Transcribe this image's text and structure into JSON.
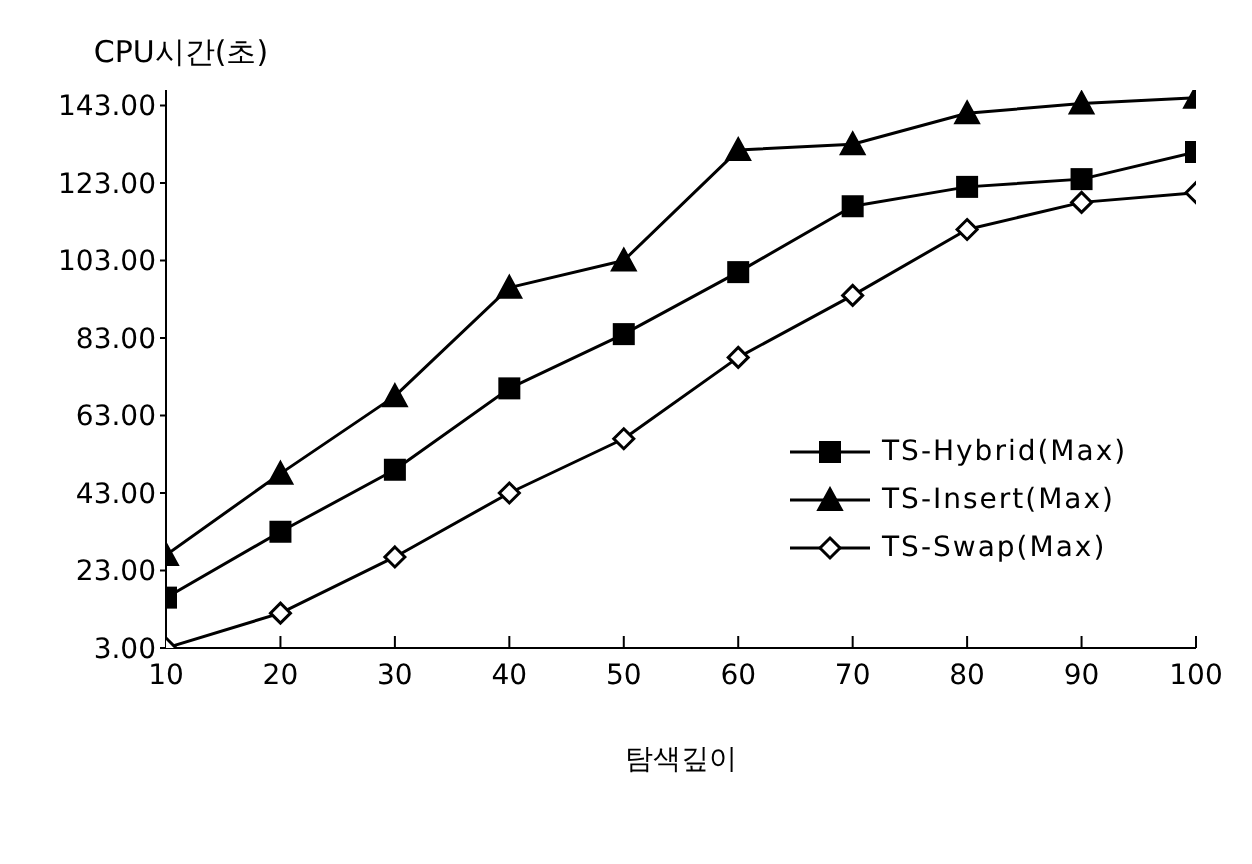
{
  "chart_data": {
    "type": "line",
    "ylabel": "CPU시간(초)",
    "xlabel": "탐색깊이",
    "x": [
      10,
      20,
      30,
      40,
      50,
      60,
      70,
      80,
      90,
      100
    ],
    "xlim": [
      10,
      100
    ],
    "xticks": [
      10,
      20,
      30,
      40,
      50,
      60,
      70,
      80,
      90,
      100
    ],
    "ylim": [
      3,
      147
    ],
    "yticks": [
      {
        "value": 3,
        "label": "3.00"
      },
      {
        "value": 23,
        "label": "23.00"
      },
      {
        "value": 43,
        "label": "43.00"
      },
      {
        "value": 63,
        "label": "63.00"
      },
      {
        "value": 83,
        "label": "83.00"
      },
      {
        "value": 103,
        "label": "103.00"
      },
      {
        "value": 123,
        "label": "123.00"
      },
      {
        "value": 143,
        "label": "143.00"
      }
    ],
    "grid": false,
    "legend": "right",
    "line_style": "solid",
    "series": [
      {
        "name": "TS-Hybrid(Max)",
        "color": "#000000",
        "marker": "square",
        "values": [
          16,
          33,
          49,
          70,
          84,
          100,
          117,
          122,
          124,
          131
        ]
      },
      {
        "name": "TS-Insert(Max)",
        "color": "#000000",
        "marker": "triangle",
        "values": [
          27,
          48,
          68,
          96,
          103,
          131.5,
          133,
          141,
          143.5,
          145
        ]
      },
      {
        "name": "TS-Swap(Max)",
        "color": "#000000",
        "marker": "diamond",
        "values": [
          3,
          12,
          26.5,
          43,
          57,
          78,
          94,
          111,
          118,
          120.5
        ]
      }
    ]
  }
}
